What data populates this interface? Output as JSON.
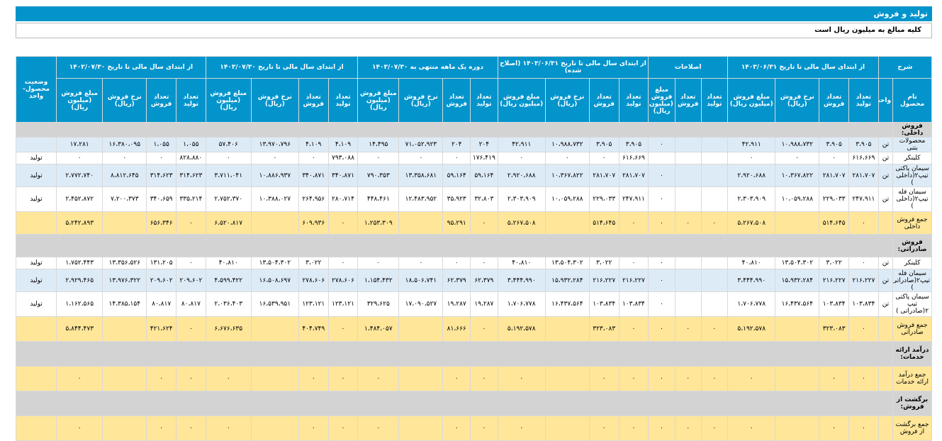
{
  "title": "تولید و فروش",
  "note": "کلیه مبالغ به میلیون ریال است",
  "header_groups": [
    "شرح",
    "از ابتدای سال مالی تا تاریخ ۱۴۰۳/۰۶/۳۱",
    "اصلاحات",
    "از ابتدای سال مالی تا تاریخ ۱۴۰۳/۰۶/۳۱ (اصلاح شده)",
    "دوره یک ماهه منتهی به ۱۴۰۳/۰۷/۳۰",
    "از ابتدای سال مالی تا تاریخ ۱۴۰۳/۰۷/۳۰",
    "از ابتدای سال مالی تا تاریخ ۱۴۰۲/۰۷/۳۰",
    "وضعیت محصول- واحد"
  ],
  "columns": [
    "نام محصول",
    "واحد",
    "تعداد تولید",
    "تعداد فروش",
    "نرخ فروش (ریال)",
    "مبلغ فروش (میلیون ریال)",
    "تعداد تولید",
    "تعداد فروش",
    "مبلغ فروش (میلیون ریال)",
    "تعداد تولید",
    "تعداد فروش",
    "نرخ فروش (ریال)",
    "مبلغ فروش (میلیون ریال)",
    "تعداد تولید",
    "تعداد فروش",
    "نرخ فروش (ریال)",
    "مبلغ فروش (میلیون ریال)",
    "تعداد تولید",
    "تعداد فروش",
    "نرخ فروش (ریال)",
    "مبلغ فروش (میلیون ریال)",
    "تعداد تولید",
    "تعداد فروش",
    "نرخ فروش (ریال)",
    "مبلغ فروش (میلیون ریال)"
  ],
  "rows": [
    {
      "kind": "section",
      "h": "r1",
      "cells": [
        "فروش داخلی:"
      ]
    },
    {
      "kind": "blue",
      "h": "r1",
      "cells": [
        "محصولات بتنی",
        "تن",
        "۳،۹۰۵",
        "۳،۹۰۵",
        "۱۰،۹۸۸،۷۳۲",
        "۴۲،۹۱۱",
        "",
        "",
        "۰",
        "۳،۹۰۵",
        "۳،۹۰۵",
        "۱۰،۹۸۸،۷۳۲",
        "۴۲،۹۱۱",
        "۲۰۴",
        "۲۰۴",
        "۷۱،۰۵۲،۹۲۳",
        "۱۴،۴۹۵",
        "۴،۱۰۹",
        "۴،۱۰۹",
        "۱۳،۹۷۰،۷۹۶",
        "۵۷،۴۰۶",
        "۱،۰۵۵",
        "۱،۰۵۵",
        "۱۶،۳۸۰،۰۹۵",
        "۱۷،۲۸۱",
        ""
      ]
    },
    {
      "kind": "white",
      "h": "r1",
      "cells": [
        "کلینکر",
        "تن",
        "۶۱۶،۶۶۹",
        "۰",
        "۰",
        "۰",
        "",
        "",
        "",
        "۶۱۶،۶۶۹",
        "۰",
        "۰",
        "۰",
        "۱۷۶،۴۱۹",
        "۰",
        "۰",
        "۰",
        "۷۹۳،۰۸۸",
        "۰",
        "۰",
        "۰",
        "۸۲۸،۸۸۰",
        "۰",
        "۰",
        "۰",
        "تولید"
      ]
    },
    {
      "kind": "blue",
      "h": "r2",
      "cells": [
        "سیمان پاکتی تیپ۲(داخلی )",
        "تن",
        "۲۸۱،۷۰۷",
        "۲۸۱،۷۰۷",
        "۱۰،۳۶۷،۸۲۲",
        "۲،۹۲۰،۶۸۸",
        "",
        "",
        "۰",
        "۲۸۱،۷۰۷",
        "۲۸۱،۷۰۷",
        "۱۰،۳۶۷،۸۲۲",
        "۲،۹۲۰،۶۸۸",
        "۵۹،۱۶۴",
        "۵۹،۱۶۴",
        "۱۳،۳۵۸،۶۸۱",
        "۷۹۰،۳۵۳",
        "۳۴۰،۸۷۱",
        "۳۴۰،۸۷۱",
        "۱۰،۸۸۶،۹۳۷",
        "۳،۷۱۱،۰۴۱",
        "۳۱۴،۶۲۳",
        "۳۱۴،۶۲۳",
        "۸،۸۱۲،۶۴۵",
        "۲،۷۷۲،۷۴۰",
        "تولید"
      ]
    },
    {
      "kind": "white",
      "h": "r3",
      "cells": [
        "سیمان فله تیپ۲(داخلی )",
        "تن",
        "۲۴۷،۹۱۱",
        "۲۲۹،۰۳۳",
        "۱۰،۰۵۹،۲۸۸",
        "۲،۳۰۳،۹۰۹",
        "",
        "",
        "۰",
        "۲۴۷،۹۱۱",
        "۲۲۹،۰۳۳",
        "۱۰،۰۵۹،۲۸۸",
        "۲،۳۰۳،۹۰۹",
        "۳۲،۸۰۳",
        "۳۵،۹۲۳",
        "۱۲،۴۸۳،۹۵۲",
        "۴۴۸،۴۶۱",
        "۲۸۰،۷۱۴",
        "۲۶۴،۹۵۶",
        "۱۰،۳۸۸،۰۲۷",
        "۲،۷۵۲،۳۷۰",
        "۳۳۵،۲۱۴",
        "۳۴۰،۶۵۹",
        "۷،۲۰۰،۳۷۳",
        "۲،۴۵۲،۸۷۲",
        "تولید"
      ]
    },
    {
      "kind": "total",
      "h": "r2",
      "cells": [
        "جمع فروش داخلی",
        "",
        "۰",
        "۵۱۴،۶۴۵",
        "",
        "۵،۲۶۷،۵۰۸",
        "۰",
        "۰",
        "۰",
        "۰",
        "۵۱۴،۶۴۵",
        "",
        "۵،۲۶۷،۵۰۸",
        "۰",
        "۹۵،۲۹۱",
        "",
        "۱،۲۵۳،۳۰۹",
        "۰",
        "۶۰۹،۹۳۶",
        "",
        "۶،۵۲۰،۸۱۷",
        "۰",
        "۶۵۶،۳۴۶",
        "",
        "۵،۲۴۲،۸۹۳",
        ""
      ]
    },
    {
      "kind": "section",
      "h": "r2",
      "cells": [
        "فروش صادراتی:"
      ]
    },
    {
      "kind": "white",
      "h": "r1",
      "cells": [
        "کلینکر",
        "تن",
        "۰",
        "۳،۰۲۲",
        "۱۳،۵۰۴،۳۰۲",
        "۴۰،۸۱۰",
        "",
        "",
        "۰",
        "۰",
        "۳،۰۲۲",
        "۱۳،۵۰۴،۳۰۲",
        "۴۰،۸۱۰",
        "۰",
        "۰",
        "۰",
        "۰",
        "۰",
        "۳،۰۲۲",
        "۱۳،۵۰۴،۳۰۲",
        "۴۰،۸۱۰",
        "۰",
        "۱۳۱،۲۰۵",
        "۱۳،۳۵۶،۵۲۶",
        "۱،۷۵۲،۴۴۳",
        "تولید"
      ]
    },
    {
      "kind": "blue",
      "h": "r2",
      "cells": [
        "سیمان فله تیپ۲(صادراتی )",
        "تن",
        "۲۱۶،۲۲۷",
        "۲۱۶،۲۲۷",
        "۱۵،۹۳۲،۲۸۴",
        "۳،۴۴۴،۹۹۰",
        "",
        "",
        "۰",
        "۲۱۶،۲۲۷",
        "۲۱۶،۲۲۷",
        "۱۵،۹۳۲،۲۸۴",
        "۳،۴۴۴،۹۹۰",
        "۶۲،۳۷۹",
        "۶۲،۳۷۹",
        "۱۸،۵۰۶،۷۴۱",
        "۱،۱۵۴،۴۳۲",
        "۲۷۸،۶۰۶",
        "۲۷۸،۶۰۶",
        "۱۶،۵۰۸،۶۹۷",
        "۴،۵۹۹،۴۲۲",
        "۲۰۹،۶۰۲",
        "۲۰۹،۶۰۲",
        "۱۳،۹۷۶،۳۲۲",
        "۲،۹۲۹،۴۶۵",
        "تولید"
      ]
    },
    {
      "kind": "white",
      "h": "r3",
      "cells": [
        "سیمان پاکتی تیپ ۲(صادراتی )",
        "تن",
        "۱۰۳،۸۳۴",
        "۱۰۳،۸۳۴",
        "۱۶،۴۳۷،۵۶۴",
        "۱،۷۰۶،۷۷۸",
        "",
        "",
        "۰",
        "۱۰۳،۸۳۴",
        "۱۰۳،۸۳۴",
        "۱۶،۴۳۷،۵۶۴",
        "۱،۷۰۶،۷۷۸",
        "۱۹،۲۸۷",
        "۱۹،۲۸۷",
        "۱۷،۰۹۰،۵۲۷",
        "۳۲۹،۶۲۵",
        "۱۲۳،۱۲۱",
        "۱۲۳،۱۲۱",
        "۱۶،۵۳۹،۹۵۱",
        "۲،۰۳۶،۴۰۳",
        "۸۰،۸۱۷",
        "۸۰،۸۱۷",
        "۱۴،۳۸۵،۱۵۴",
        "۱،۱۶۲،۵۶۵",
        "تولید"
      ]
    },
    {
      "kind": "total",
      "h": "r3",
      "cells": [
        "جمع فروش صادراتی",
        "",
        "۰",
        "۳۲۳،۰۸۳",
        "",
        "۵،۱۹۲،۵۷۸",
        "۰",
        "۰",
        "۰",
        "۰",
        "۳۲۳،۰۸۳",
        "",
        "۵،۱۹۲،۵۷۸",
        "۰",
        "۸۱،۶۶۶",
        "",
        "۱،۴۸۴،۰۵۷",
        "۰",
        "۴۰۴،۷۴۹",
        "",
        "۶،۶۷۶،۶۳۵",
        "۰",
        "۴۲۱،۶۲۴",
        "",
        "۵،۸۴۴،۴۷۳",
        ""
      ]
    },
    {
      "kind": "section",
      "h": "r3",
      "cells": [
        "درآمد ارائه خدمات:"
      ]
    },
    {
      "kind": "total",
      "h": "r3",
      "cells": [
        "جمع درآمد ارائه خدمات",
        "",
        "۰",
        "۰",
        "",
        "۰",
        "۰",
        "۰",
        "۰",
        "۰",
        "۰",
        "",
        "۰",
        "۰",
        "۰",
        "",
        "۰",
        "۰",
        "۰",
        "",
        "۰",
        "۰",
        "۰",
        "",
        "۰",
        ""
      ]
    },
    {
      "kind": "section",
      "h": "r3",
      "cells": [
        "برگشت از فروش:"
      ]
    },
    {
      "kind": "total",
      "h": "r3",
      "cells": [
        "جمع برگشت از فروش",
        "",
        "۰",
        "۰",
        "",
        "۰",
        "۰",
        "۰",
        "۰",
        "۰",
        "۰",
        "",
        "۰",
        "۰",
        "۰",
        "",
        "۰",
        "۰",
        "۰",
        "",
        "۰",
        "۰",
        "۰",
        "",
        "۰",
        ""
      ]
    }
  ]
}
